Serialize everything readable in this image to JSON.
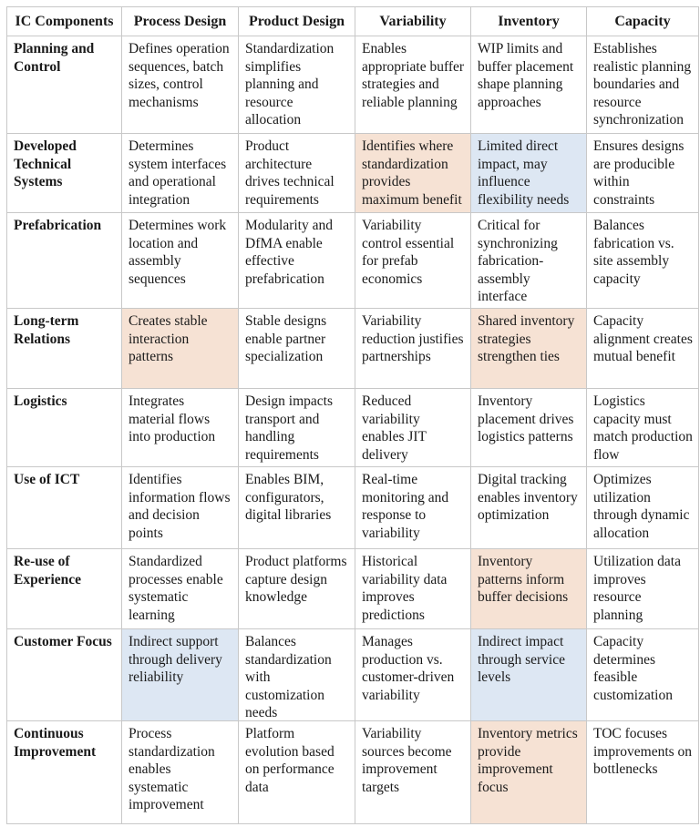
{
  "colors": {
    "orange_highlight": "#f6e2d4",
    "blue_highlight": "#dde7f3"
  },
  "headers": [
    "IC Components",
    "Process Design",
    "Product Design",
    "Variability",
    "Inventory",
    "Capacity"
  ],
  "rows": [
    {
      "label": "Planning and Control",
      "cells": [
        {
          "text": "Defines operation sequences, batch sizes, control mechanisms",
          "hl": ""
        },
        {
          "text": "Standardization simplifies planning and resource allocation",
          "hl": ""
        },
        {
          "text": "Enables appropriate buffer strategies and reliable planning",
          "hl": ""
        },
        {
          "text": "WIP limits and buffer placement shape planning approaches",
          "hl": ""
        },
        {
          "text": "Establishes realistic planning boundaries and resource synchronization",
          "hl": ""
        }
      ]
    },
    {
      "label": "Developed Technical Systems",
      "cells": [
        {
          "text": "Determines system interfaces and operational integration",
          "hl": ""
        },
        {
          "text": "Product architecture drives technical requirements",
          "hl": ""
        },
        {
          "text": "Identifies where standardization provides maximum benefit",
          "hl": "orange"
        },
        {
          "text": "Limited direct impact, may influence flexibility needs",
          "hl": "blue"
        },
        {
          "text": "Ensures designs are producible within constraints",
          "hl": ""
        }
      ]
    },
    {
      "label": "Prefabrication",
      "cells": [
        {
          "text": "Determines work location and assembly sequences",
          "hl": ""
        },
        {
          "text": "Modularity and DfMA enable effective prefabrication",
          "hl": ""
        },
        {
          "text": "Variability control essential for prefab economics",
          "hl": ""
        },
        {
          "text": "Critical for synchronizing fabrication-assembly interface",
          "hl": ""
        },
        {
          "text": "Balances fabrication vs. site assembly capacity",
          "hl": ""
        }
      ]
    },
    {
      "label": "Long-term Relations",
      "cells": [
        {
          "text": "Creates stable interaction patterns",
          "hl": "orange"
        },
        {
          "text": "Stable designs enable partner specialization",
          "hl": ""
        },
        {
          "text": "Variability reduction justifies partnerships",
          "hl": ""
        },
        {
          "text": "Shared inventory strategies strengthen ties",
          "hl": "orange"
        },
        {
          "text": "Capacity alignment creates mutual benefit",
          "hl": ""
        }
      ]
    },
    {
      "label": "Logistics",
      "cells": [
        {
          "text": "Integrates material flows into production",
          "hl": ""
        },
        {
          "text": "Design impacts transport and handling requirements",
          "hl": ""
        },
        {
          "text": "Reduced variability enables JIT delivery",
          "hl": ""
        },
        {
          "text": "Inventory placement drives logistics patterns",
          "hl": ""
        },
        {
          "text": "Logistics capacity must match production flow",
          "hl": ""
        }
      ]
    },
    {
      "label": "Use of ICT",
      "cells": [
        {
          "text": "Identifies information flows and decision points",
          "hl": ""
        },
        {
          "text": "Enables BIM, configurators, digital libraries",
          "hl": ""
        },
        {
          "text": "Real-time monitoring and response to variability",
          "hl": ""
        },
        {
          "text": "Digital tracking enables inventory optimization",
          "hl": ""
        },
        {
          "text": "Optimizes utilization through dynamic allocation",
          "hl": ""
        }
      ]
    },
    {
      "label": "Re-use of Experience",
      "cells": [
        {
          "text": "Standardized processes enable systematic learning",
          "hl": ""
        },
        {
          "text": "Product platforms capture design knowledge",
          "hl": ""
        },
        {
          "text": "Historical variability data improves predictions",
          "hl": ""
        },
        {
          "text": "Inventory patterns inform buffer decisions",
          "hl": "orange"
        },
        {
          "text": "Utilization data improves resource planning",
          "hl": ""
        }
      ]
    },
    {
      "label": "Customer Focus",
      "cells": [
        {
          "text": "Indirect support through delivery reliability",
          "hl": "blue"
        },
        {
          "text": "Balances standardization with customization needs",
          "hl": ""
        },
        {
          "text": "Manages production vs. customer-driven variability",
          "hl": ""
        },
        {
          "text": "Indirect impact through service levels",
          "hl": "blue"
        },
        {
          "text": "Capacity determines feasible customization",
          "hl": ""
        }
      ]
    },
    {
      "label": "Continuous Improvement",
      "cells": [
        {
          "text": "Process standardization enables systematic improvement",
          "hl": ""
        },
        {
          "text": "Platform evolution based on performance data",
          "hl": ""
        },
        {
          "text": "Variability sources become improvement targets",
          "hl": ""
        },
        {
          "text": "Inventory metrics provide improvement focus",
          "hl": "orange"
        },
        {
          "text": "TOC focuses improvements on bottlenecks",
          "hl": ""
        }
      ]
    }
  ]
}
